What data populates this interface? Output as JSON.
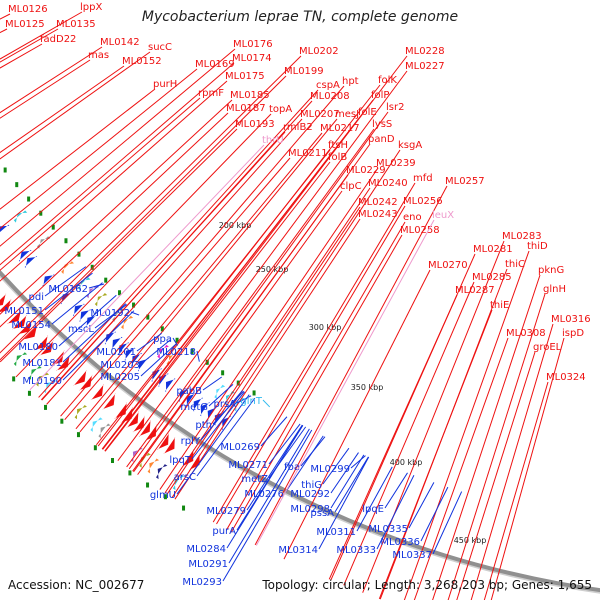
{
  "title": "Mycobacterium leprae TN, complete genome",
  "accession_text": "Accession: NC_002677",
  "topology_text": "Topology: circular; Length: 3,268,203 bp; Genes: 1,655",
  "colors": {
    "forward": "#ee1111",
    "reverse": "#1133dd",
    "trna": "#ee99cc",
    "rrna": "#33bbee",
    "backbone": "#909090",
    "background": "#ffffff"
  },
  "scale_marks": [
    "200 kbp",
    "250 kbp",
    "300 kbp",
    "350 kbp",
    "400 kbp",
    "450 kbp"
  ],
  "forward_labels": [
    "ML0126",
    "lppX",
    "ML0125",
    "ML0135",
    "fadD22",
    "mas",
    "ML0142",
    "sucC",
    "ML0152",
    "purH",
    "ML0176",
    "ML0174",
    "ML0169",
    "ML0175",
    "rpmF",
    "ML0202",
    "ML0199",
    "cspA",
    "ML0185",
    "ML0187",
    "topA",
    "ML0193",
    "hpt",
    "ML0208",
    "ML0207",
    "rmlB2",
    "mesJ",
    "ML0228",
    "ML0227",
    "folK",
    "folP",
    "folE",
    "ML0217",
    "lsr2",
    "lysS",
    "ML0211",
    "ftsH",
    "folB",
    "panD",
    "ksgA",
    "ML0229",
    "clpC",
    "ML0239",
    "mfd",
    "ML0240",
    "ML0257",
    "ML0242",
    "ML0243",
    "ML0256",
    "eno",
    "ML0258",
    "ML0283",
    "thiD",
    "ML0281",
    "ML0270",
    "thiC",
    "pknG",
    "ML0285",
    "glnH",
    "ML0287",
    "thiE",
    "ML0316",
    "ML0308",
    "ispD",
    "groEL",
    "ML0324"
  ],
  "reverse_labels": [
    "pdi",
    "ML0162",
    "ML0151",
    "ML0154",
    "mscL",
    "ML0192",
    "ML0180",
    "ML0181",
    "ML0201",
    "ML0190",
    "ppa",
    "ML0203",
    "ML0218",
    "ML0205",
    "pabB",
    "metG",
    "prsA",
    "pth",
    "rplY",
    "ML0269",
    "lpqT",
    "arsC",
    "ML0271",
    "metZ",
    "fba",
    "ML0299",
    "thiG",
    "glmU",
    "ML0276",
    "ML0292",
    "ML0298",
    "ML0279",
    "pssA",
    "lpqE",
    "purA",
    "ML0311",
    "ML0335",
    "ML0284",
    "ML0314",
    "ML0333",
    "ML0336",
    "ML0337",
    "ML0291",
    "ML0293"
  ],
  "trna_labels": [
    "thrU",
    "leuX"
  ],
  "rrna_labels": [
    "glnT"
  ]
}
